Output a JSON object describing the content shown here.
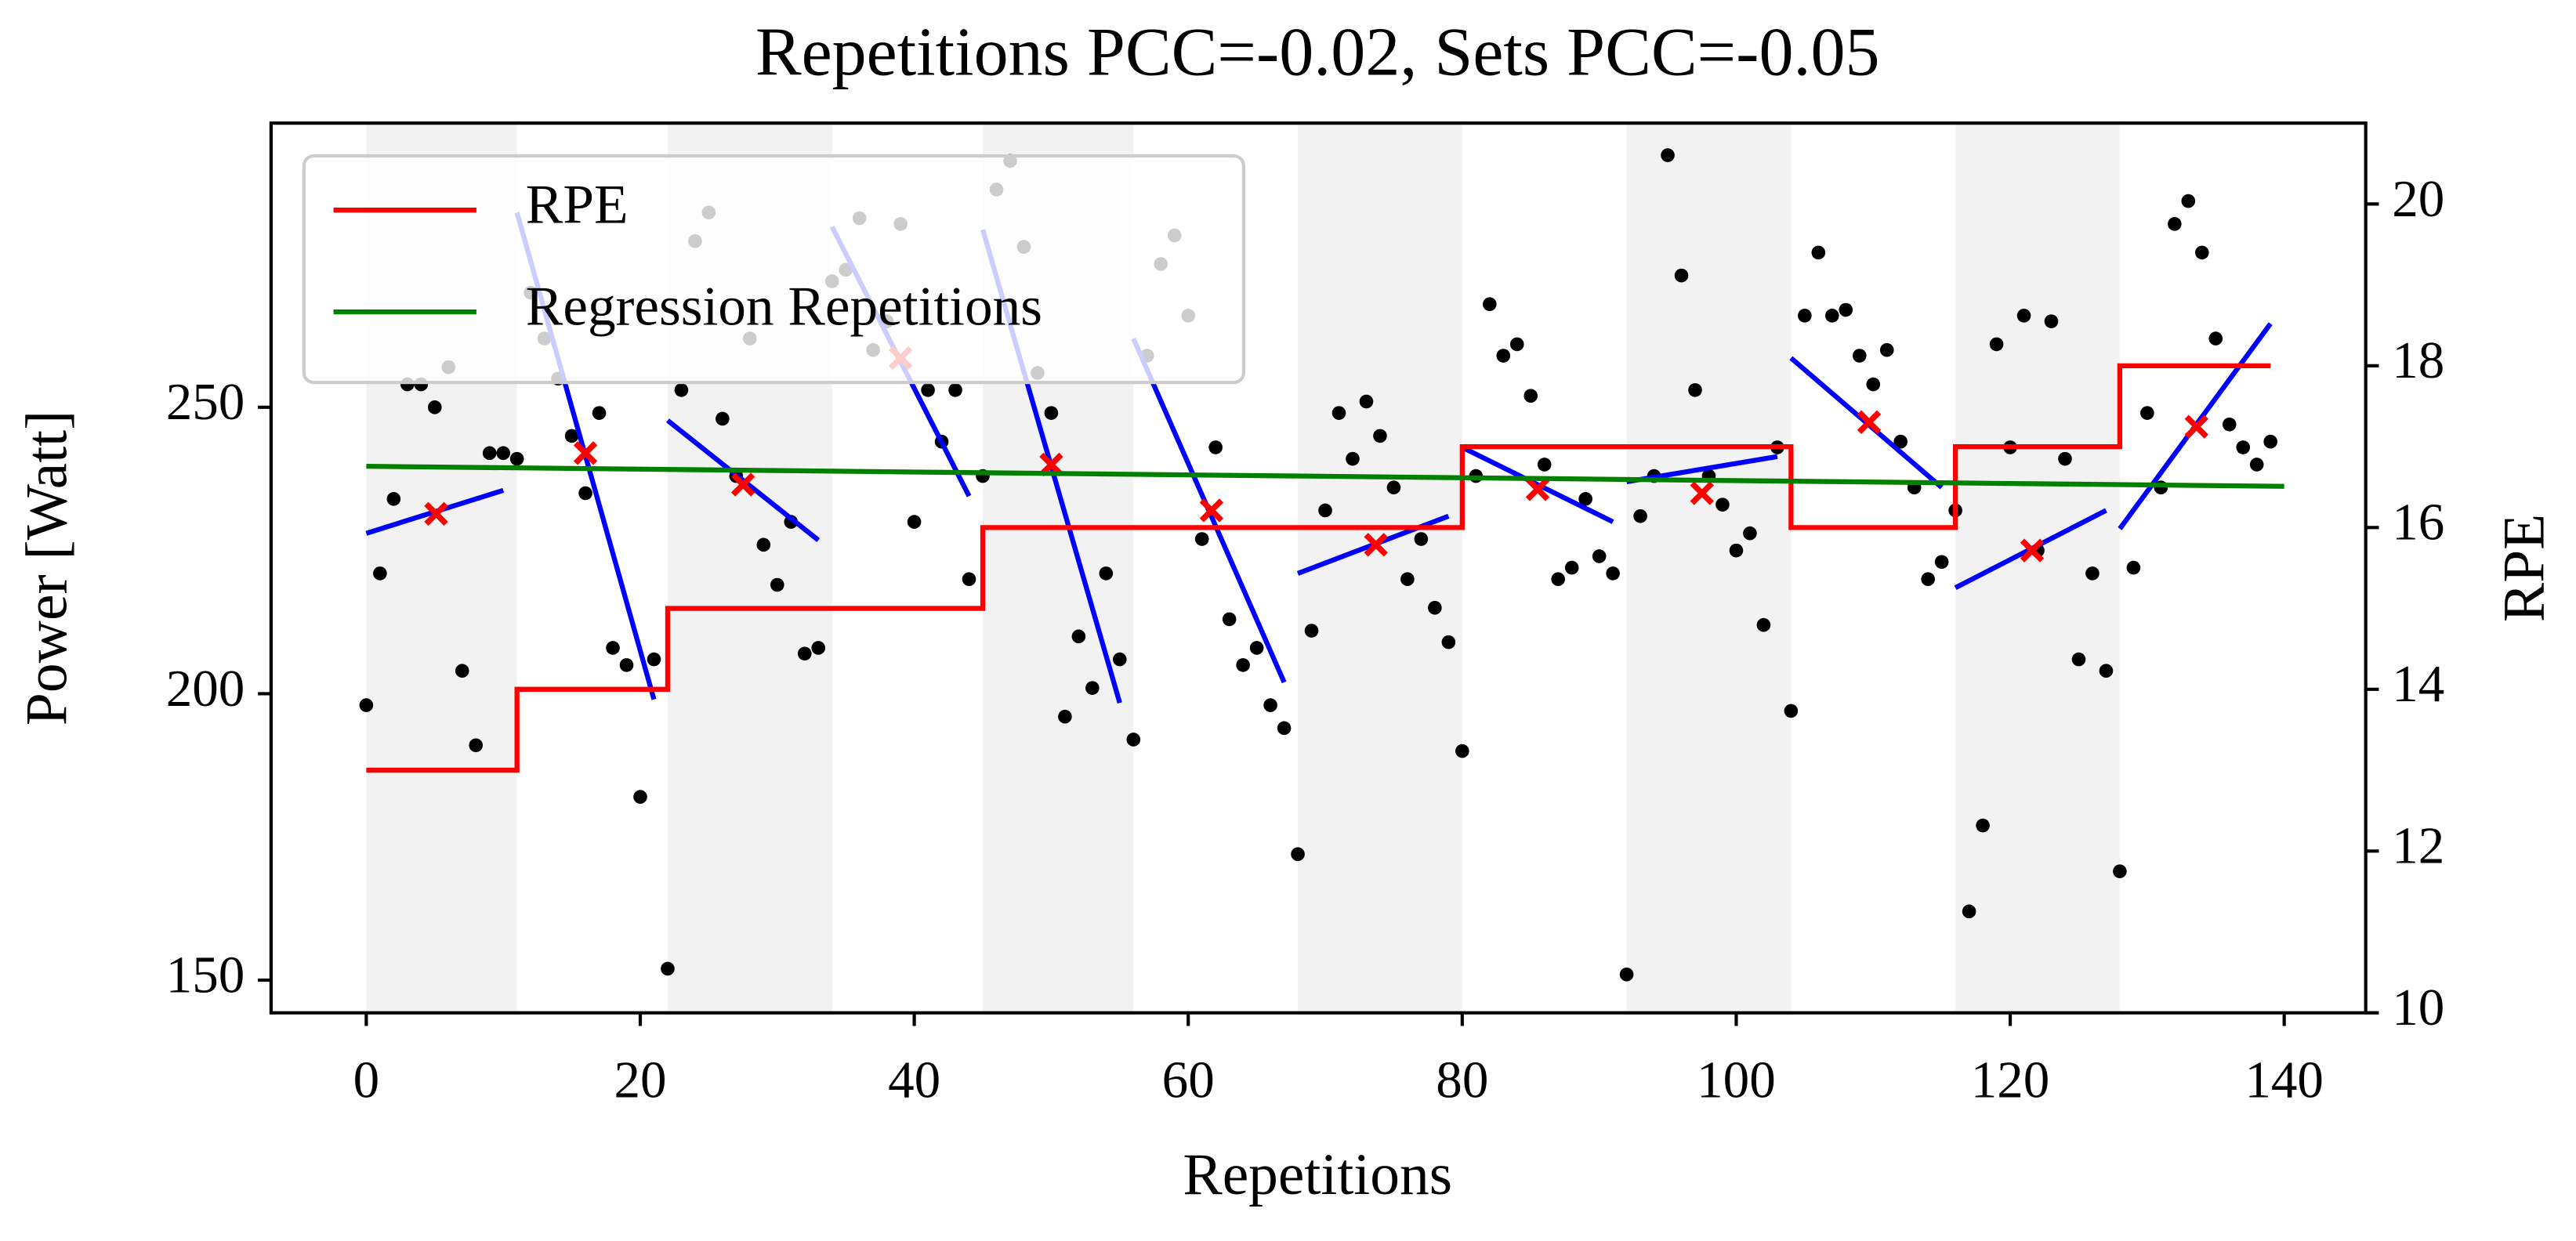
{
  "chart_data": {
    "type": "scatter",
    "title": "Repetitions PCC=-0.02, Sets PCC=-0.05",
    "xlabel": "Repetitions",
    "ylabel": "Power [Watt]",
    "y2label": "RPE",
    "xlim": [
      -6.95,
      145.95
    ],
    "xticks": [
      0,
      20,
      40,
      60,
      80,
      100,
      120,
      140
    ],
    "ylim": [
      144.3,
      299.6
    ],
    "yticks": [
      150,
      200,
      250
    ],
    "y2lim": [
      10,
      21
    ],
    "y2ticks": [
      10,
      12,
      14,
      16,
      18,
      20
    ],
    "legend": "upper left",
    "power": {
      "color": "#000000",
      "x": [
        0,
        1,
        2,
        3,
        4,
        5,
        6,
        7,
        8,
        9,
        10,
        11,
        12,
        13,
        14,
        15,
        16,
        17,
        18,
        19,
        20,
        21,
        22,
        23,
        24,
        25,
        26,
        27,
        28,
        29,
        30,
        31,
        32,
        33,
        34,
        35,
        36,
        37,
        38,
        39,
        40,
        41,
        42,
        43,
        44,
        45,
        46,
        47,
        48,
        49,
        50,
        51,
        52,
        53,
        54,
        55,
        56,
        57,
        58,
        59,
        60,
        61,
        62,
        63,
        64,
        65,
        66,
        67,
        68,
        69,
        70,
        71,
        72,
        73,
        74,
        75,
        76,
        77,
        78,
        79,
        80,
        81,
        82,
        83,
        84,
        85,
        86,
        87,
        88,
        89,
        90,
        91,
        92,
        93,
        94,
        95,
        96,
        97,
        98,
        99,
        100,
        101,
        102,
        103,
        104,
        105,
        106,
        107,
        108,
        109,
        110,
        111,
        112,
        113,
        114,
        115,
        116,
        117,
        118,
        119,
        120,
        121,
        122,
        123,
        124,
        125,
        126,
        127,
        128,
        129,
        130,
        131,
        132,
        133,
        134,
        135,
        136,
        137,
        138,
        139
      ],
      "values": [
        198,
        221,
        234,
        254,
        254,
        250,
        257,
        204,
        191,
        242,
        242,
        241,
        270,
        262,
        255,
        245,
        235,
        249,
        208,
        205,
        182,
        206,
        152,
        253,
        279,
        284,
        248,
        238,
        262,
        226,
        219,
        230,
        207,
        208,
        272,
        274,
        283,
        260,
        265,
        282,
        230,
        253,
        244,
        253,
        220,
        238,
        288,
        293,
        278,
        256,
        249,
        196,
        210,
        201,
        221,
        206,
        192,
        259,
        275,
        280,
        266,
        227,
        243,
        213,
        205,
        208,
        198,
        194,
        172,
        211,
        232,
        249,
        241,
        251,
        245,
        236,
        220,
        227,
        215,
        209,
        190,
        238,
        268,
        259,
        261,
        252,
        240,
        220,
        222,
        234,
        224,
        221,
        151,
        231,
        238,
        294,
        273,
        253,
        238,
        233,
        225,
        228,
        212,
        243,
        197,
        266,
        277,
        266,
        267,
        259,
        254,
        260,
        244,
        236,
        220,
        223,
        232,
        162,
        177,
        261,
        243,
        266,
        225,
        265,
        241,
        206,
        221,
        204,
        169,
        222,
        249,
        236,
        282,
        286,
        277,
        262,
        247,
        243,
        240,
        244
      ]
    },
    "sets": {
      "band_color": "#f2f2f2",
      "start": [
        0,
        11,
        22,
        34,
        45,
        56,
        68,
        80,
        92,
        104,
        116,
        128
      ],
      "end": [
        11,
        22,
        34,
        45,
        56,
        68,
        80,
        92,
        104,
        116,
        128,
        139
      ]
    },
    "rpe": {
      "name": "RPE",
      "color": "#ff0000",
      "axis": "y2",
      "values": [
        13,
        14,
        15,
        15,
        16,
        16,
        16,
        17,
        17,
        16,
        17,
        18
      ]
    },
    "regression": {
      "name": "Regression Repetitions",
      "color": "#008000",
      "x": [
        0,
        140
      ],
      "values": [
        239.7,
        236.2
      ]
    },
    "set_regression": {
      "color": "#0000ff",
      "x": [
        [
          0,
          10
        ],
        [
          11,
          21
        ],
        [
          22,
          33
        ],
        [
          34,
          44
        ],
        [
          45,
          55
        ],
        [
          56,
          67
        ],
        [
          68,
          79
        ],
        [
          80,
          91
        ],
        [
          92,
          103
        ],
        [
          104,
          115
        ],
        [
          116,
          127
        ],
        [
          128,
          139
        ]
      ],
      "values": [
        [
          228,
          235.5
        ],
        [
          284,
          199
        ],
        [
          247.7,
          226.8
        ],
        [
          281.5,
          234.5
        ],
        [
          281,
          198.4
        ],
        [
          262,
          202
        ],
        [
          221,
          231
        ],
        [
          243,
          230
        ],
        [
          237,
          241.4
        ],
        [
          258.6,
          236
        ],
        [
          218.5,
          232
        ],
        [
          228.8,
          264.6
        ]
      ]
    },
    "set_means": {
      "color": "#ff0000",
      "x": [
        5.1,
        16,
        27.5,
        39,
        50,
        61.7,
        73.7,
        85.5,
        97.5,
        109.7,
        121.6,
        133.6
      ],
      "values": [
        231.4,
        242,
        236.5,
        258.6,
        240,
        232,
        226,
        235.7,
        235,
        247.4,
        225,
        246.6
      ]
    }
  }
}
